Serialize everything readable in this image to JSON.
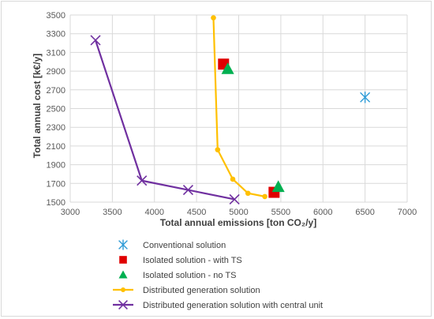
{
  "chart_data": {
    "type": "scatter",
    "title": "",
    "xlabel": "Total annual emissions [ton CO₂/y]",
    "ylabel": "Total annual cost [k€/y]",
    "xlim": [
      3000,
      7000
    ],
    "ylim": [
      1500,
      3500
    ],
    "x_ticks": [
      3000,
      3500,
      4000,
      4500,
      5000,
      5500,
      6000,
      6500,
      7000
    ],
    "y_ticks": [
      1500,
      1700,
      1900,
      2100,
      2300,
      2500,
      2700,
      2900,
      3100,
      3300,
      3500
    ],
    "grid": "both",
    "legend_position": "bottom",
    "series": [
      {
        "name": "Conventional solution",
        "marker": "asterisk",
        "line": false,
        "color": "#2e9bd6",
        "points": [
          [
            6500,
            2620
          ]
        ]
      },
      {
        "name": "Isolated solution - with TS",
        "marker": "square",
        "line": false,
        "color": "#e00000",
        "points": [
          [
            4820,
            2975
          ],
          [
            5420,
            1605
          ]
        ]
      },
      {
        "name": "Isolated solution - no TS",
        "marker": "triangle",
        "line": false,
        "color": "#00b050",
        "points": [
          [
            4870,
            2925
          ],
          [
            5470,
            1665
          ]
        ]
      },
      {
        "name": "Distributed generation solution",
        "marker": "circle",
        "line": true,
        "color": "#ffc000",
        "points": [
          [
            4700,
            3470
          ],
          [
            4750,
            2060
          ],
          [
            4930,
            1745
          ],
          [
            5110,
            1595
          ],
          [
            5310,
            1560
          ]
        ]
      },
      {
        "name": "Distributed generation solution with central unit",
        "marker": "x",
        "line": true,
        "color": "#7030a0",
        "points": [
          [
            3300,
            3230
          ],
          [
            3850,
            1730
          ],
          [
            4400,
            1630
          ],
          [
            4950,
            1530
          ]
        ]
      }
    ]
  }
}
